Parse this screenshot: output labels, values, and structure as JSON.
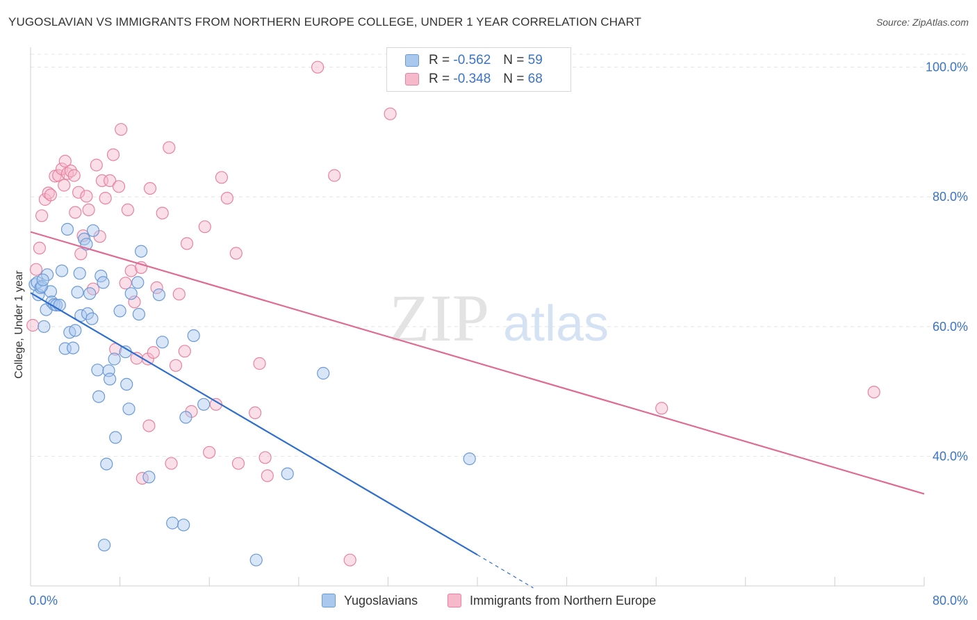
{
  "header": {
    "title": "YUGOSLAVIAN VS IMMIGRANTS FROM NORTHERN EUROPE COLLEGE, UNDER 1 YEAR CORRELATION CHART",
    "source": "Source: ZipAtlas.com"
  },
  "watermark": {
    "zip": "ZIP",
    "atlas": "atlas"
  },
  "legend": {
    "r_label": "R =",
    "n_label": "N =",
    "items": [
      {
        "name": "Yugoslavians",
        "r": "-0.562",
        "n": "59",
        "fill": "#aac8ee",
        "stroke": "#6a9ad8"
      },
      {
        "name": "Immigrants from Northern Europe",
        "r": "-0.348",
        "n": "68",
        "fill": "#f6b8cb",
        "stroke": "#e9829f"
      }
    ]
  },
  "colors": {
    "blue_line": "#2e6fce",
    "pink_line": "#e06b92",
    "tick_text": "#3a74c8",
    "grid": "#e4e4e4"
  },
  "chart_data": {
    "type": "scatter",
    "title": "YUGOSLAVIAN VS IMMIGRANTS FROM NORTHERN EUROPE COLLEGE, UNDER 1 YEAR CORRELATION CHART",
    "xlabel": "",
    "ylabel": "College, Under 1 year",
    "xlim": [
      0,
      80
    ],
    "ylim": [
      20,
      102
    ],
    "x_tick_labels": [
      "0.0%",
      "80.0%"
    ],
    "x_tick_values": [
      0,
      80
    ],
    "x_minor_ticks": [
      0,
      8,
      16,
      24,
      32,
      40,
      48,
      56,
      64,
      72,
      80
    ],
    "y_ticks": [
      {
        "value": 100,
        "label": "100.0%"
      },
      {
        "value": 80,
        "label": "80.0%"
      },
      {
        "value": 60,
        "label": "60.0%"
      },
      {
        "value": 40,
        "label": "40.0%"
      }
    ],
    "grid": true,
    "series": [
      {
        "name": "Yugoslavians",
        "r": -0.562,
        "n": 59,
        "trend": {
          "x": [
            0,
            40
          ],
          "y": [
            65.2,
            24.8
          ],
          "dash_to": [
            45,
            19.7
          ]
        },
        "points": [
          [
            0.4,
            66.5
          ],
          [
            0.6,
            66.8
          ],
          [
            0.7,
            64.9
          ],
          [
            0.9,
            66.0
          ],
          [
            1.2,
            60.0
          ],
          [
            1.4,
            62.6
          ],
          [
            1.5,
            68.0
          ],
          [
            1.8,
            65.4
          ],
          [
            1.9,
            63.8
          ],
          [
            2.1,
            63.4
          ],
          [
            2.3,
            63.3
          ],
          [
            2.6,
            63.3
          ],
          [
            2.8,
            68.6
          ],
          [
            3.1,
            56.6
          ],
          [
            3.3,
            75.0
          ],
          [
            3.5,
            59.1
          ],
          [
            3.8,
            56.7
          ],
          [
            4.0,
            59.4
          ],
          [
            4.2,
            65.3
          ],
          [
            4.4,
            68.2
          ],
          [
            4.5,
            61.7
          ],
          [
            4.8,
            73.5
          ],
          [
            5.0,
            72.7
          ],
          [
            5.1,
            62.0
          ],
          [
            5.3,
            65.1
          ],
          [
            5.5,
            61.2
          ],
          [
            5.6,
            74.8
          ],
          [
            6.0,
            53.3
          ],
          [
            6.1,
            49.2
          ],
          [
            6.3,
            67.8
          ],
          [
            6.5,
            66.8
          ],
          [
            6.8,
            38.8
          ],
          [
            7.0,
            53.2
          ],
          [
            7.1,
            51.9
          ],
          [
            7.5,
            55.0
          ],
          [
            7.6,
            42.9
          ],
          [
            8.0,
            62.4
          ],
          [
            8.5,
            56.1
          ],
          [
            8.6,
            51.1
          ],
          [
            8.8,
            47.3
          ],
          [
            9.0,
            65.1
          ],
          [
            9.6,
            66.8
          ],
          [
            9.7,
            61.9
          ],
          [
            9.9,
            71.6
          ],
          [
            10.6,
            36.8
          ],
          [
            11.5,
            64.9
          ],
          [
            11.8,
            57.6
          ],
          [
            12.7,
            29.7
          ],
          [
            13.7,
            29.4
          ],
          [
            13.9,
            46.0
          ],
          [
            14.6,
            58.6
          ],
          [
            15.5,
            48.0
          ],
          [
            6.6,
            26.3
          ],
          [
            20.2,
            24.0
          ],
          [
            23.0,
            37.3
          ],
          [
            26.2,
            52.8
          ],
          [
            39.3,
            39.6
          ],
          [
            1.0,
            66.2
          ],
          [
            1.1,
            67.2
          ]
        ]
      },
      {
        "name": "Immigrants from Northern Europe",
        "r": -0.348,
        "n": 68,
        "trend": {
          "x": [
            0,
            80
          ],
          "y": [
            74.6,
            34.2
          ]
        },
        "points": [
          [
            0.2,
            60.2
          ],
          [
            0.5,
            68.8
          ],
          [
            0.8,
            72.1
          ],
          [
            1.0,
            77.1
          ],
          [
            1.3,
            79.6
          ],
          [
            1.6,
            80.6
          ],
          [
            1.8,
            80.3
          ],
          [
            2.2,
            83.2
          ],
          [
            2.5,
            83.3
          ],
          [
            2.8,
            84.3
          ],
          [
            3.0,
            81.8
          ],
          [
            3.1,
            85.5
          ],
          [
            3.3,
            83.6
          ],
          [
            3.6,
            84.0
          ],
          [
            3.9,
            83.3
          ],
          [
            4.0,
            77.6
          ],
          [
            4.3,
            80.7
          ],
          [
            4.5,
            71.2
          ],
          [
            4.7,
            74.0
          ],
          [
            5.0,
            80.1
          ],
          [
            5.2,
            78.0
          ],
          [
            5.6,
            65.8
          ],
          [
            5.9,
            84.9
          ],
          [
            6.2,
            73.9
          ],
          [
            6.4,
            82.5
          ],
          [
            6.7,
            79.8
          ],
          [
            7.1,
            82.5
          ],
          [
            7.4,
            86.5
          ],
          [
            7.6,
            56.5
          ],
          [
            7.9,
            81.6
          ],
          [
            8.1,
            90.4
          ],
          [
            8.5,
            66.7
          ],
          [
            8.7,
            78.0
          ],
          [
            9.0,
            68.6
          ],
          [
            9.3,
            63.8
          ],
          [
            9.5,
            55.1
          ],
          [
            9.9,
            69.1
          ],
          [
            10.0,
            36.6
          ],
          [
            10.5,
            55.0
          ],
          [
            10.6,
            44.7
          ],
          [
            10.7,
            81.3
          ],
          [
            11.0,
            56.0
          ],
          [
            11.3,
            66.0
          ],
          [
            11.8,
            77.5
          ],
          [
            12.4,
            87.6
          ],
          [
            12.6,
            38.9
          ],
          [
            13.0,
            54.0
          ],
          [
            13.3,
            65.0
          ],
          [
            13.8,
            56.2
          ],
          [
            14.0,
            72.8
          ],
          [
            14.4,
            46.9
          ],
          [
            15.6,
            75.4
          ],
          [
            16.0,
            40.6
          ],
          [
            16.6,
            48.0
          ],
          [
            17.1,
            83.0
          ],
          [
            17.6,
            79.8
          ],
          [
            18.4,
            71.3
          ],
          [
            18.6,
            38.9
          ],
          [
            20.1,
            46.7
          ],
          [
            20.5,
            54.3
          ],
          [
            21.0,
            39.8
          ],
          [
            21.2,
            37.0
          ],
          [
            25.7,
            100.0
          ],
          [
            27.2,
            83.3
          ],
          [
            28.6,
            24.0
          ],
          [
            32.2,
            92.8
          ],
          [
            56.5,
            47.4
          ],
          [
            75.5,
            49.9
          ]
        ]
      }
    ]
  }
}
